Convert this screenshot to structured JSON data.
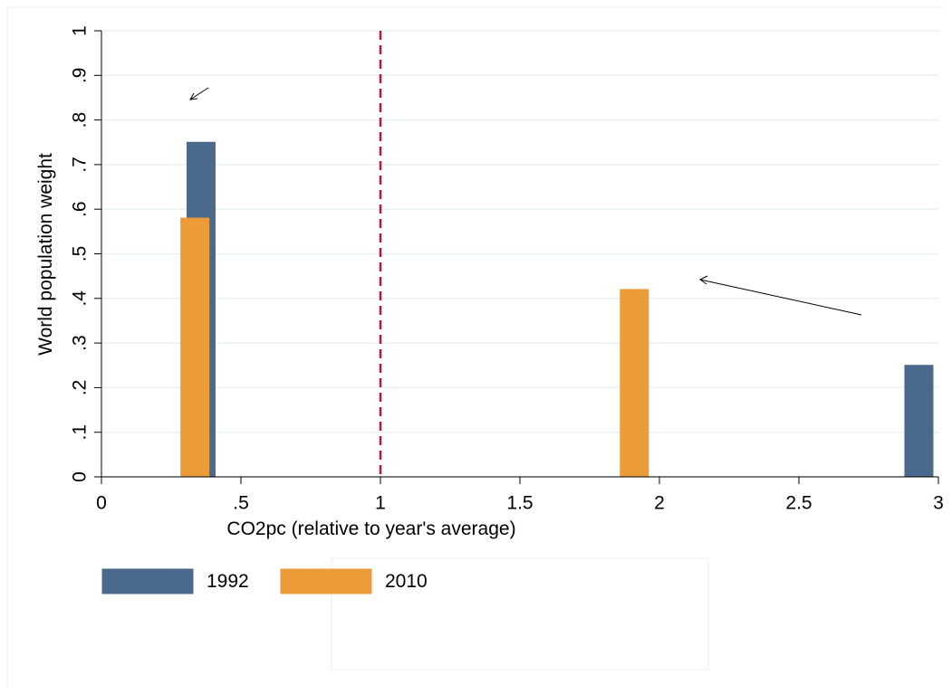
{
  "chart_data": {
    "type": "bar",
    "x_label": "CO2pc (relative  to year's average)",
    "y_label": "World population weight",
    "xlim": [
      0,
      3
    ],
    "xticks": [
      0,
      {
        "value": 0.5,
        "label": ".5"
      },
      1,
      1.5,
      2,
      2.5,
      3
    ],
    "ylim": [
      0,
      1
    ],
    "yticks": [
      0,
      {
        "value": 0.1,
        "label": ".1"
      },
      {
        "value": 0.2,
        "label": ".2"
      },
      {
        "value": 0.3,
        "label": ".3"
      },
      {
        "value": 0.4,
        "label": ".4"
      },
      {
        "value": 0.5,
        "label": ".5"
      },
      {
        "value": 0.6,
        "label": ".6"
      },
      {
        "value": 0.7,
        "label": ".7"
      },
      {
        "value": 0.8,
        "label": ".8"
      },
      {
        "value": 0.9,
        "label": ".9"
      },
      1
    ],
    "grid": true,
    "legend": "bottom-left",
    "reference_line": {
      "x": 1,
      "color": "#c1163f",
      "style": "dashed"
    },
    "series": [
      {
        "name": "1992",
        "color": "#4a6a8d",
        "x": [
          0.357,
          2.93
        ],
        "values": [
          0.75,
          0.25
        ]
      },
      {
        "name": "2010",
        "color": "#ec9b39",
        "x": [
          0.335,
          1.91
        ],
        "values": [
          0.58,
          0.42
        ]
      }
    ]
  }
}
